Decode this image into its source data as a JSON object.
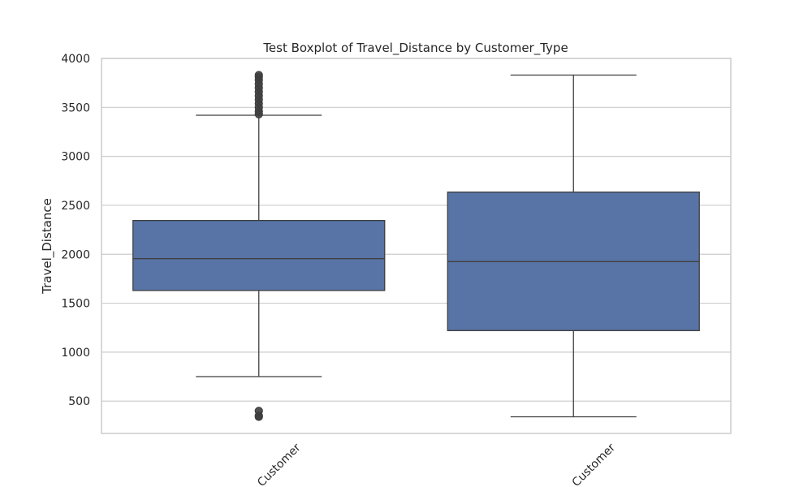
{
  "chart_data": {
    "type": "boxplot",
    "title": "Test Boxplot of Travel_Distance by Customer_Type",
    "xlabel": "",
    "ylabel": "Travel_Distance",
    "ylim": [
      170,
      4000
    ],
    "yticks": [
      500,
      1000,
      1500,
      2000,
      2500,
      3000,
      3500,
      4000
    ],
    "grid": true,
    "categories": [
      "Customer",
      "Customer"
    ],
    "boxes": [
      {
        "whisker_low": 750,
        "q1": 1630,
        "median": 1955,
        "q3": 2345,
        "whisker_high": 3420,
        "outliers": [
          340,
          350,
          400,
          3430,
          3460,
          3500,
          3540,
          3580,
          3620,
          3660,
          3700,
          3740,
          3780,
          3810,
          3830
        ]
      },
      {
        "whisker_low": 340,
        "q1": 1220,
        "median": 1925,
        "q3": 2635,
        "whisker_high": 3830,
        "outliers": []
      }
    ],
    "colors": {
      "box_fill": "#5874a6",
      "line": "#3f3f3f",
      "grid": "#cccccc",
      "frame": "#cccccc",
      "outlier_fill": "#3f3f3f"
    }
  }
}
